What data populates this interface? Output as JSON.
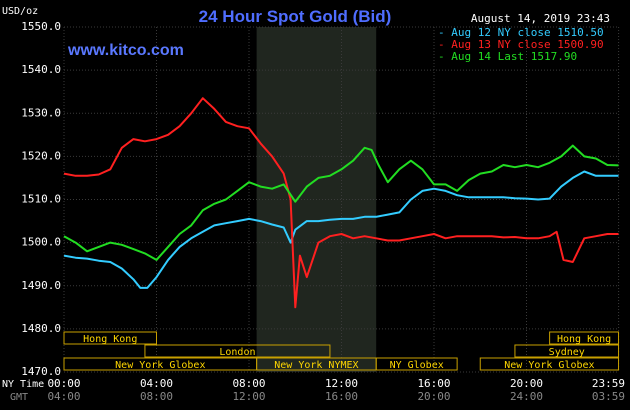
{
  "chart_data": {
    "type": "line",
    "title": "24 Hour Spot Gold (Bid)",
    "watermark": "www.kitco.com",
    "timestamp": "August 14, 2019 23:43",
    "ylabel": "USD/oz",
    "ylim": [
      1470,
      1550
    ],
    "y_ticks": [
      "1550.0",
      "1540.0",
      "1530.0",
      "1520.0",
      "1510.0",
      "1500.0",
      "1490.0",
      "1480.0",
      "1470.0"
    ],
    "y_tick_values": [
      1550,
      1540,
      1530,
      1520,
      1510,
      1500,
      1490,
      1480,
      1470
    ],
    "x_axis_label_ny": "NY Time",
    "x_axis_label_gmt": "GMT",
    "x_ticks_ny": [
      "00:00",
      "04:00",
      "08:00",
      "12:00",
      "16:00",
      "20:00",
      "23:59"
    ],
    "x_ticks_gmt": [
      "04:00",
      "08:00",
      "12:00",
      "16:00",
      "20:00",
      "24:00",
      "03:59"
    ],
    "x_tick_hours": [
      0,
      4,
      8,
      12,
      16,
      20,
      23.983
    ],
    "grid": true,
    "shaded_hours": [
      8.33,
      13.5
    ],
    "legend_position": "top-right",
    "colors": {
      "background": "#000000",
      "grid": "#3a3a3a",
      "axis_text": "#ffffff",
      "title": "#4f6dff",
      "watermark": "#5a78ff",
      "shade": "#20261f",
      "session_box": "#c8a000",
      "session_text": "#ffd700"
    },
    "series": [
      {
        "name": "Aug 12 NY close 1510.50",
        "color": "#33ccff",
        "points": [
          [
            0,
            1497
          ],
          [
            0.5,
            1496.5
          ],
          [
            1,
            1496.3
          ],
          [
            1.5,
            1495.8
          ],
          [
            2,
            1495.5
          ],
          [
            2.5,
            1494
          ],
          [
            3,
            1491.5
          ],
          [
            3.3,
            1489.5
          ],
          [
            3.6,
            1489.5
          ],
          [
            4,
            1492
          ],
          [
            4.5,
            1496
          ],
          [
            5,
            1499
          ],
          [
            5.5,
            1501
          ],
          [
            6,
            1502.5
          ],
          [
            6.5,
            1504
          ],
          [
            7,
            1504.5
          ],
          [
            7.5,
            1505
          ],
          [
            8,
            1505.5
          ],
          [
            8.5,
            1505
          ],
          [
            9,
            1504.2
          ],
          [
            9.5,
            1503.5
          ],
          [
            9.8,
            1500
          ],
          [
            10,
            1503
          ],
          [
            10.5,
            1505
          ],
          [
            11,
            1505
          ],
          [
            11.5,
            1505.3
          ],
          [
            12,
            1505.5
          ],
          [
            12.5,
            1505.5
          ],
          [
            13,
            1506
          ],
          [
            13.5,
            1506
          ],
          [
            14,
            1506.5
          ],
          [
            14.5,
            1507
          ],
          [
            15,
            1510
          ],
          [
            15.5,
            1512
          ],
          [
            16,
            1512.5
          ],
          [
            16.5,
            1512
          ],
          [
            17,
            1511
          ],
          [
            17.5,
            1510.5
          ],
          [
            18,
            1510.5
          ],
          [
            18.5,
            1510.5
          ],
          [
            19,
            1510.5
          ],
          [
            19.5,
            1510.3
          ],
          [
            20,
            1510.2
          ],
          [
            20.5,
            1510
          ],
          [
            21,
            1510.2
          ],
          [
            21.5,
            1513
          ],
          [
            22,
            1515
          ],
          [
            22.5,
            1516.5
          ],
          [
            23,
            1515.5
          ],
          [
            23.5,
            1515.5
          ],
          [
            23.98,
            1515.5
          ]
        ]
      },
      {
        "name": "Aug 13 NY close 1500.90",
        "color": "#ff2020",
        "points": [
          [
            0,
            1516
          ],
          [
            0.5,
            1515.5
          ],
          [
            1,
            1515.5
          ],
          [
            1.5,
            1515.8
          ],
          [
            2,
            1517
          ],
          [
            2.5,
            1522
          ],
          [
            3,
            1524
          ],
          [
            3.5,
            1523.5
          ],
          [
            4,
            1524
          ],
          [
            4.5,
            1525
          ],
          [
            5,
            1527
          ],
          [
            5.5,
            1530
          ],
          [
            6,
            1533.5
          ],
          [
            6.5,
            1531
          ],
          [
            7,
            1528
          ],
          [
            7.5,
            1527
          ],
          [
            8,
            1526.5
          ],
          [
            8.5,
            1523
          ],
          [
            9,
            1520
          ],
          [
            9.5,
            1516
          ],
          [
            9.8,
            1510
          ],
          [
            10,
            1485
          ],
          [
            10.2,
            1497
          ],
          [
            10.5,
            1492
          ],
          [
            11,
            1500
          ],
          [
            11.5,
            1501.5
          ],
          [
            12,
            1502
          ],
          [
            12.5,
            1501
          ],
          [
            13,
            1501.5
          ],
          [
            13.5,
            1501
          ],
          [
            14,
            1500.5
          ],
          [
            14.5,
            1500.5
          ],
          [
            15,
            1501
          ],
          [
            15.5,
            1501.5
          ],
          [
            16,
            1502
          ],
          [
            16.5,
            1501
          ],
          [
            17,
            1501.5
          ],
          [
            17.5,
            1501.5
          ],
          [
            18,
            1501.5
          ],
          [
            18.5,
            1501.5
          ],
          [
            19,
            1501.2
          ],
          [
            19.5,
            1501.3
          ],
          [
            20,
            1501
          ],
          [
            20.5,
            1501
          ],
          [
            21,
            1501.5
          ],
          [
            21.3,
            1502.5
          ],
          [
            21.6,
            1496
          ],
          [
            22,
            1495.5
          ],
          [
            22.5,
            1501
          ],
          [
            23,
            1501.5
          ],
          [
            23.5,
            1502
          ],
          [
            23.98,
            1502
          ]
        ]
      },
      {
        "name": "Aug 14 Last 1517.90",
        "color": "#22dd22",
        "points": [
          [
            0,
            1501.5
          ],
          [
            0.5,
            1500
          ],
          [
            1,
            1498
          ],
          [
            1.5,
            1499
          ],
          [
            2,
            1500
          ],
          [
            2.5,
            1499.5
          ],
          [
            3,
            1498.5
          ],
          [
            3.5,
            1497.5
          ],
          [
            4,
            1496
          ],
          [
            4.5,
            1499
          ],
          [
            5,
            1502
          ],
          [
            5.5,
            1504
          ],
          [
            6,
            1507.5
          ],
          [
            6.5,
            1509
          ],
          [
            7,
            1510
          ],
          [
            7.5,
            1512
          ],
          [
            8,
            1514
          ],
          [
            8.5,
            1513
          ],
          [
            9,
            1512.5
          ],
          [
            9.5,
            1513.5
          ],
          [
            10,
            1509.5
          ],
          [
            10.5,
            1513
          ],
          [
            11,
            1515
          ],
          [
            11.5,
            1515.5
          ],
          [
            12,
            1517
          ],
          [
            12.5,
            1519
          ],
          [
            13,
            1522
          ],
          [
            13.3,
            1521.5
          ],
          [
            13.6,
            1518
          ],
          [
            14,
            1514
          ],
          [
            14.5,
            1517
          ],
          [
            15,
            1519
          ],
          [
            15.5,
            1517
          ],
          [
            16,
            1513.5
          ],
          [
            16.5,
            1513.5
          ],
          [
            17,
            1512
          ],
          [
            17.5,
            1514.5
          ],
          [
            18,
            1516
          ],
          [
            18.5,
            1516.5
          ],
          [
            19,
            1518
          ],
          [
            19.5,
            1517.5
          ],
          [
            20,
            1518
          ],
          [
            20.5,
            1517.5
          ],
          [
            21,
            1518.5
          ],
          [
            21.5,
            1520
          ],
          [
            22,
            1522.5
          ],
          [
            22.5,
            1520
          ],
          [
            23,
            1519.5
          ],
          [
            23.5,
            1518
          ],
          [
            23.98,
            1517.9
          ]
        ]
      }
    ],
    "sessions": [
      {
        "label": "Hong Kong",
        "start": 0,
        "end": 4,
        "row": 0
      },
      {
        "label": "Hong Kong",
        "start": 21,
        "end": 23.98,
        "row": 0
      },
      {
        "label": "London",
        "start": 3.5,
        "end": 11.5,
        "row": 1
      },
      {
        "label": "Sydney",
        "start": 19.5,
        "end": 23.98,
        "row": 1
      },
      {
        "label": "New York Globex",
        "start": 0,
        "end": 8.33,
        "row": 2
      },
      {
        "label": "New York NYMEX",
        "start": 8.33,
        "end": 13.5,
        "row": 2
      },
      {
        "label": "NY Globex",
        "start": 13.5,
        "end": 17,
        "row": 2
      },
      {
        "label": "New York Globex",
        "start": 18,
        "end": 23.98,
        "row": 2
      }
    ]
  }
}
